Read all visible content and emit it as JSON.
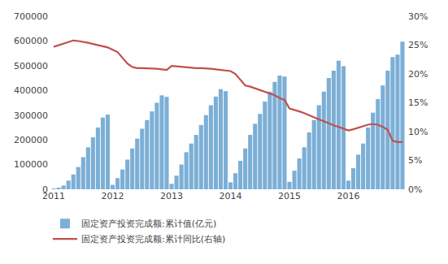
{
  "chart_data": {
    "type": "bar",
    "categories": [
      "2011",
      null,
      null,
      null,
      null,
      null,
      null,
      null,
      null,
      null,
      null,
      null,
      "2012",
      null,
      null,
      null,
      null,
      null,
      null,
      null,
      null,
      null,
      null,
      null,
      "2013",
      null,
      null,
      null,
      null,
      null,
      null,
      null,
      null,
      null,
      null,
      null,
      "2014",
      null,
      null,
      null,
      null,
      null,
      null,
      null,
      null,
      null,
      null,
      null,
      "2015",
      null,
      null,
      null,
      null,
      null,
      null,
      null,
      null,
      null,
      null,
      null,
      "2016",
      null,
      null,
      null,
      null,
      null,
      null,
      null,
      null,
      null,
      null,
      null
    ],
    "series": [
      {
        "name": "固定资产投资完成额:累计值(亿元)",
        "type": "bar",
        "color": "#7cafd6",
        "values": [
          2000,
          6000,
          15000,
          35000,
          60000,
          90000,
          130000,
          170000,
          210000,
          250000,
          290000,
          302000,
          18000,
          45000,
          80000,
          120000,
          165000,
          205000,
          245000,
          280000,
          315000,
          350000,
          380000,
          374000,
          22000,
          55000,
          100000,
          150000,
          185000,
          220000,
          260000,
          300000,
          340000,
          375000,
          405000,
          397000,
          28000,
          65000,
          115000,
          165000,
          220000,
          265000,
          305000,
          355000,
          395000,
          435000,
          460000,
          456000,
          30000,
          75000,
          125000,
          170000,
          230000,
          280000,
          340000,
          395000,
          450000,
          480000,
          520000,
          498000,
          35000,
          85000,
          140000,
          185000,
          250000,
          310000,
          365000,
          420000,
          480000,
          535000,
          545000,
          597000
        ]
      },
      {
        "name": "固定资产投资完成额:累计同比(右轴)",
        "type": "line",
        "axis": "y2",
        "color": "#c0504d",
        "values": [
          0.247,
          0.25,
          0.252,
          0.255,
          0.258,
          0.257,
          0.256,
          0.254,
          0.252,
          0.25,
          0.248,
          0.246,
          0.242,
          0.238,
          0.228,
          0.218,
          0.212,
          0.21,
          0.21,
          0.21,
          0.21,
          0.209,
          0.208,
          0.207,
          0.214,
          0.213,
          0.212,
          0.211,
          0.21,
          0.21,
          0.21,
          0.21,
          0.209,
          0.208,
          0.207,
          0.205,
          0.205,
          0.2,
          0.19,
          0.18,
          0.178,
          0.175,
          0.172,
          0.169,
          0.166,
          0.163,
          0.158,
          0.155,
          0.14,
          0.138,
          0.135,
          0.132,
          0.128,
          0.125,
          0.121,
          0.118,
          0.114,
          0.111,
          0.108,
          0.105,
          0.102,
          0.104,
          0.107,
          0.11,
          0.112,
          0.113,
          0.112,
          0.108,
          0.103,
          0.084,
          0.082,
          0.082
        ]
      }
    ],
    "ylim": [
      0,
      700000
    ],
    "yticks": [
      0,
      100000,
      200000,
      300000,
      400000,
      500000,
      600000,
      700000
    ],
    "y2lim": [
      0,
      0.3
    ],
    "y2ticks": [
      {
        "value": 0.0,
        "label": "0%"
      },
      {
        "value": 0.05,
        "label": "5%"
      },
      {
        "value": 0.1,
        "label": "10%"
      },
      {
        "value": 0.15,
        "label": "15%"
      },
      {
        "value": 0.2,
        "label": "20%"
      },
      {
        "value": 0.25,
        "label": "25%"
      },
      {
        "value": 0.3,
        "label": "30%"
      }
    ],
    "grid": false,
    "legend": "bottom"
  }
}
